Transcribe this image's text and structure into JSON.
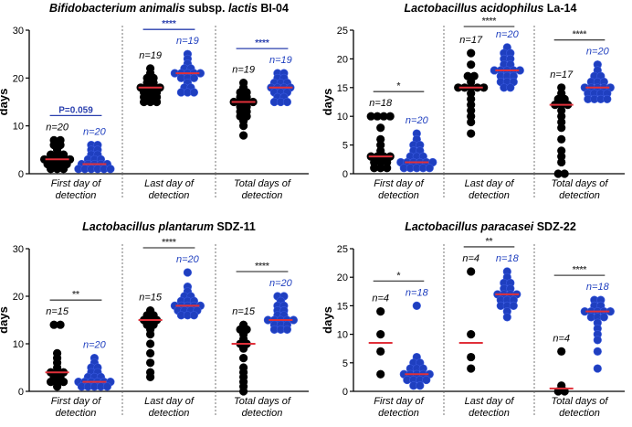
{
  "colors": {
    "group1": "#000000",
    "group2": "#1f3fbf",
    "median": "#e0303a",
    "sig_blue": "#2a3fae",
    "sig_black": "#444444"
  },
  "chart_data": [
    {
      "type": "scatter",
      "title": "Bifidobacterium animalis subsp. lactis BI-04",
      "title_parts": [
        "Bifidobacterium animalis",
        " subsp. ",
        "lactis",
        " BI-04"
      ],
      "ylabel": "days",
      "ylim": [
        0,
        30
      ],
      "yticks": [
        "0",
        "10",
        "20",
        "30"
      ],
      "categories": [
        {
          "label": [
            "First day of",
            "detection"
          ],
          "groups": [
            {
              "n": "n=20",
              "values": [
                7,
                7,
                6,
                6,
                5,
                4,
                4,
                4,
                3,
                3,
                3,
                3,
                3,
                2,
                2,
                2,
                2,
                1,
                1,
                1
              ],
              "median": 3
            },
            {
              "n": "n=20",
              "values": [
                6,
                6,
                5,
                5,
                4,
                4,
                3,
                3,
                3,
                2,
                2,
                2,
                2,
                2,
                1,
                1,
                1,
                1,
                1,
                1
              ],
              "median": 2
            }
          ],
          "sig": {
            "text": "P=0.059",
            "color": "sig_blue"
          }
        },
        {
          "label": [
            "Last day of",
            "detection"
          ],
          "groups": [
            {
              "n": "n=19",
              "values": [
                22,
                21,
                20,
                20,
                19,
                19,
                18,
                18,
                18,
                18,
                17,
                17,
                17,
                16,
                16,
                16,
                15,
                15,
                15
              ],
              "median": 18
            },
            {
              "n": "n=19",
              "values": [
                25,
                24,
                23,
                22,
                22,
                21,
                21,
                21,
                21,
                21,
                20,
                20,
                20,
                19,
                18,
                18,
                17,
                17,
                17
              ],
              "median": 21
            }
          ],
          "sig": {
            "text": "****",
            "color": "sig_blue"
          }
        },
        {
          "label": [
            "Total days of",
            "detection"
          ],
          "groups": [
            {
              "n": "n=19",
              "values": [
                19,
                18,
                17,
                17,
                16,
                16,
                15,
                15,
                15,
                15,
                14,
                14,
                13,
                13,
                12,
                12,
                11,
                10,
                8
              ],
              "median": 15
            },
            {
              "n": "n=19",
              "values": [
                21,
                21,
                20,
                20,
                19,
                19,
                19,
                18,
                18,
                18,
                18,
                17,
                17,
                17,
                16,
                16,
                15,
                15,
                15
              ],
              "median": 18
            }
          ],
          "sig": {
            "text": "****",
            "color": "sig_blue"
          }
        }
      ]
    },
    {
      "type": "scatter",
      "title": "Lactobacillus acidophilus La-14",
      "title_parts": [
        "Lactobacillus acidophilus",
        " La-14"
      ],
      "ylabel": "days",
      "ylim": [
        0,
        25
      ],
      "yticks": [
        "0",
        "5",
        "10",
        "15",
        "20",
        "25"
      ],
      "categories": [
        {
          "label": [
            "First day of",
            "detection"
          ],
          "groups": [
            {
              "n": "n=18",
              "values": [
                10,
                10,
                10,
                10,
                8,
                6,
                5,
                4,
                3,
                3,
                3,
                3,
                2,
                2,
                2,
                1,
                1,
                1
              ],
              "median": 3
            },
            {
              "n": "n=20",
              "values": [
                7,
                6,
                5,
                5,
                4,
                4,
                3,
                3,
                3,
                2,
                2,
                2,
                2,
                2,
                2,
                1,
                1,
                1,
                1,
                1
              ],
              "median": 2
            }
          ],
          "sig": {
            "text": "*",
            "color": "sig_black"
          }
        },
        {
          "label": [
            "Last day of",
            "detection"
          ],
          "groups": [
            {
              "n": "n=17",
              "values": [
                21,
                19,
                17,
                17,
                16,
                15,
                15,
                15,
                15,
                15,
                14,
                13,
                12,
                11,
                10,
                9,
                7
              ],
              "median": 15
            },
            {
              "n": "n=20",
              "values": [
                22,
                21,
                21,
                20,
                20,
                19,
                19,
                18,
                18,
                18,
                18,
                18,
                17,
                17,
                17,
                16,
                16,
                16,
                15,
                15
              ],
              "median": 18
            }
          ],
          "sig": {
            "text": "****",
            "color": "sig_black"
          }
        },
        {
          "label": [
            "Total days of",
            "detection"
          ],
          "groups": [
            {
              "n": "n=17",
              "values": [
                15,
                14,
                13,
                13,
                12,
                12,
                12,
                11,
                10,
                9,
                8,
                6,
                4,
                3,
                2,
                0,
                0
              ],
              "median": 12
            },
            {
              "n": "n=20",
              "values": [
                19,
                18,
                17,
                17,
                16,
                16,
                16,
                15,
                15,
                15,
                15,
                15,
                14,
                14,
                14,
                14,
                13,
                13,
                13,
                13
              ],
              "median": 15
            }
          ],
          "sig": {
            "text": "****",
            "color": "sig_black"
          }
        }
      ]
    },
    {
      "type": "scatter",
      "title": "Lactobacillus plantarum SDZ-11",
      "title_parts": [
        "Lactobacillus plantarum",
        " SDZ-11"
      ],
      "ylabel": "days",
      "ylim": [
        0,
        30
      ],
      "yticks": [
        "0",
        "10",
        "20",
        "30"
      ],
      "categories": [
        {
          "label": [
            "First day of",
            "detection"
          ],
          "groups": [
            {
              "n": "n=15",
              "values": [
                14,
                14,
                8,
                7,
                6,
                5,
                4,
                4,
                4,
                3,
                3,
                2,
                2,
                2,
                1
              ],
              "median": 4
            },
            {
              "n": "n=20",
              "values": [
                7,
                6,
                5,
                5,
                4,
                4,
                3,
                3,
                3,
                2,
                2,
                2,
                2,
                2,
                2,
                1,
                1,
                1,
                1,
                1
              ],
              "median": 2
            }
          ],
          "sig": {
            "text": "**",
            "color": "sig_black"
          }
        },
        {
          "label": [
            "Last day of",
            "detection"
          ],
          "groups": [
            {
              "n": "n=15",
              "values": [
                17,
                16,
                16,
                15,
                15,
                15,
                14,
                14,
                13,
                12,
                10,
                8,
                6,
                4,
                3
              ],
              "median": 15
            },
            {
              "n": "n=20",
              "values": [
                25,
                22,
                21,
                20,
                20,
                19,
                19,
                19,
                18,
                18,
                18,
                18,
                18,
                17,
                17,
                17,
                17,
                16,
                16,
                16
              ],
              "median": 18
            }
          ],
          "sig": {
            "text": "****",
            "color": "sig_black"
          }
        },
        {
          "label": [
            "Total days of",
            "detection"
          ],
          "groups": [
            {
              "n": "n=15",
              "values": [
                14,
                13,
                13,
                12,
                11,
                10,
                10,
                9,
                7,
                5,
                4,
                3,
                2,
                1,
                0
              ],
              "median": 10
            },
            {
              "n": "n=20",
              "values": [
                20,
                20,
                19,
                18,
                18,
                17,
                17,
                16,
                16,
                15,
                15,
                15,
                15,
                15,
                14,
                14,
                14,
                13,
                13,
                13
              ],
              "median": 15
            }
          ],
          "sig": {
            "text": "****",
            "color": "sig_black"
          }
        }
      ]
    },
    {
      "type": "scatter",
      "title": "Lactobacillus paracasei SDZ-22",
      "title_parts": [
        "Lactobacillus paracasei",
        " SDZ-22"
      ],
      "ylabel": "days",
      "ylim": [
        0,
        25
      ],
      "yticks": [
        "0",
        "5",
        "10",
        "15",
        "20",
        "25"
      ],
      "categories": [
        {
          "label": [
            "First day of",
            "detection"
          ],
          "groups": [
            {
              "n": "n=4",
              "values": [
                14,
                10,
                7,
                3
              ],
              "median": 8.5
            },
            {
              "n": "n=18",
              "values": [
                15,
                6,
                5,
                5,
                4,
                4,
                4,
                3,
                3,
                3,
                3,
                3,
                2,
                2,
                2,
                2,
                1,
                1
              ],
              "median": 3
            }
          ],
          "sig": {
            "text": "*",
            "color": "sig_black"
          }
        },
        {
          "label": [
            "Last day of",
            "detection"
          ],
          "groups": [
            {
              "n": "n=4",
              "values": [
                21,
                10,
                6,
                4
              ],
              "median": 8.5
            },
            {
              "n": "n=18",
              "values": [
                21,
                20,
                19,
                19,
                18,
                18,
                17,
                17,
                17,
                17,
                16,
                16,
                16,
                15,
                15,
                15,
                14,
                13
              ],
              "median": 17
            }
          ],
          "sig": {
            "text": "**",
            "color": "sig_black"
          }
        },
        {
          "label": [
            "Total days of",
            "detection"
          ],
          "groups": [
            {
              "n": "n=4",
              "values": [
                7,
                1,
                0,
                0
              ],
              "median": 0.5
            },
            {
              "n": "n=18",
              "values": [
                16,
                16,
                15,
                15,
                14,
                14,
                14,
                14,
                14,
                13,
                13,
                13,
                12,
                11,
                10,
                9,
                7,
                4
              ],
              "median": 14
            }
          ],
          "sig": {
            "text": "****",
            "color": "sig_black"
          }
        }
      ]
    }
  ]
}
